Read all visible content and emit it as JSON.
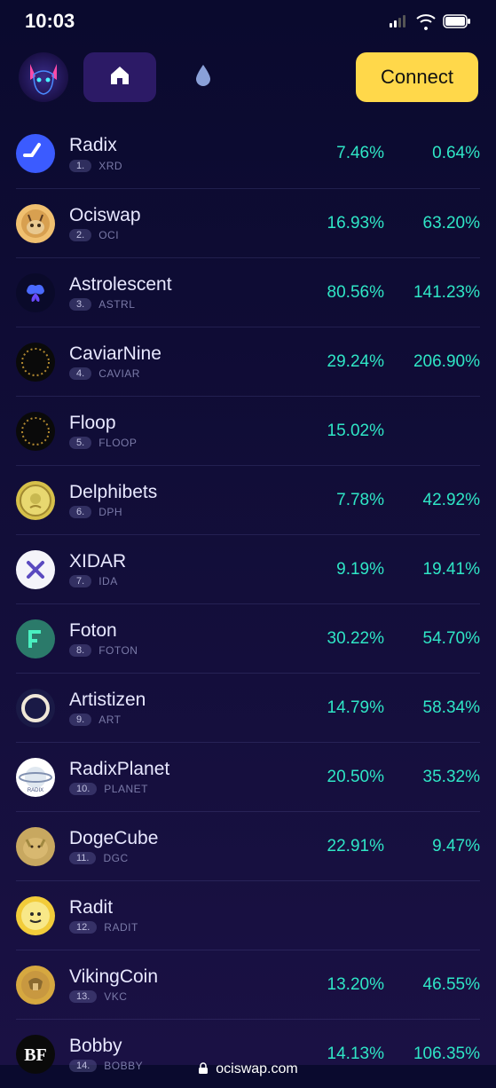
{
  "status": {
    "time": "10:03"
  },
  "header": {
    "connect_label": "Connect"
  },
  "colors": {
    "pct_positive": "#2fe6c6",
    "bg_top": "#0a0a2e",
    "bg_bottom": "#1a1144",
    "nav_active": "#2c1a66",
    "connect_bg": "#ffd84a",
    "connect_text": "#111"
  },
  "footer": {
    "domain": "ociswap.com"
  },
  "tokens": [
    {
      "name": "Radix",
      "rank": "1.",
      "sym": "XRD",
      "p1": "7.46%",
      "p2": "0.64%",
      "icon_bg": "#3b5bff",
      "icon_kind": "radix"
    },
    {
      "name": "Ociswap",
      "rank": "2.",
      "sym": "OCI",
      "p1": "16.93%",
      "p2": "63.20%",
      "icon_bg": "#f0c070",
      "icon_kind": "oci"
    },
    {
      "name": "Astrolescent",
      "rank": "3.",
      "sym": "ASTRL",
      "p1": "80.56%",
      "p2": "141.23%",
      "icon_bg": "#0a0a2a",
      "icon_kind": "butterfly"
    },
    {
      "name": "CaviarNine",
      "rank": "4.",
      "sym": "CAVIAR",
      "p1": "29.24%",
      "p2": "206.90%",
      "icon_bg": "#0a0a0a",
      "icon_kind": "cring"
    },
    {
      "name": "Floop",
      "rank": "5.",
      "sym": "FLOOP",
      "p1": "15.02%",
      "p2": "",
      "icon_bg": "#0a0a0a",
      "icon_kind": "cring"
    },
    {
      "name": "Delphibets",
      "rank": "6.",
      "sym": "DPH",
      "p1": "7.78%",
      "p2": "42.92%",
      "icon_bg": "#d6c04a",
      "icon_kind": "coin"
    },
    {
      "name": "XIDAR",
      "rank": "7.",
      "sym": "IDA",
      "p1": "9.19%",
      "p2": "19.41%",
      "icon_bg": "#f4f4fa",
      "icon_kind": "x"
    },
    {
      "name": "Foton",
      "rank": "8.",
      "sym": "FOTON",
      "p1": "30.22%",
      "p2": "54.70%",
      "icon_bg": "#2b7a6a",
      "icon_kind": "f"
    },
    {
      "name": "Artistizen",
      "rank": "9.",
      "sym": "ART",
      "p1": "14.79%",
      "p2": "58.34%",
      "icon_bg": "#1a1a46",
      "icon_kind": "ring"
    },
    {
      "name": "RadixPlanet",
      "rank": "10.",
      "sym": "PLANET",
      "p1": "20.50%",
      "p2": "35.32%",
      "icon_bg": "#ffffff",
      "icon_kind": "planet"
    },
    {
      "name": "DogeCube",
      "rank": "11.",
      "sym": "DGC",
      "p1": "22.91%",
      "p2": "9.47%",
      "icon_bg": "#c8a860",
      "icon_kind": "doge"
    },
    {
      "name": "Radit",
      "rank": "12.",
      "sym": "RADIT",
      "p1": "",
      "p2": "",
      "icon_bg": "#f2cc3a",
      "icon_kind": "radit"
    },
    {
      "name": "VikingCoin",
      "rank": "13.",
      "sym": "VKC",
      "p1": "13.20%",
      "p2": "46.55%",
      "icon_bg": "#d6a840",
      "icon_kind": "viking"
    },
    {
      "name": "Bobby",
      "rank": "14.",
      "sym": "BOBBY",
      "p1": "14.13%",
      "p2": "106.35%",
      "icon_bg": "#0a0a0a",
      "icon_kind": "bf"
    }
  ]
}
